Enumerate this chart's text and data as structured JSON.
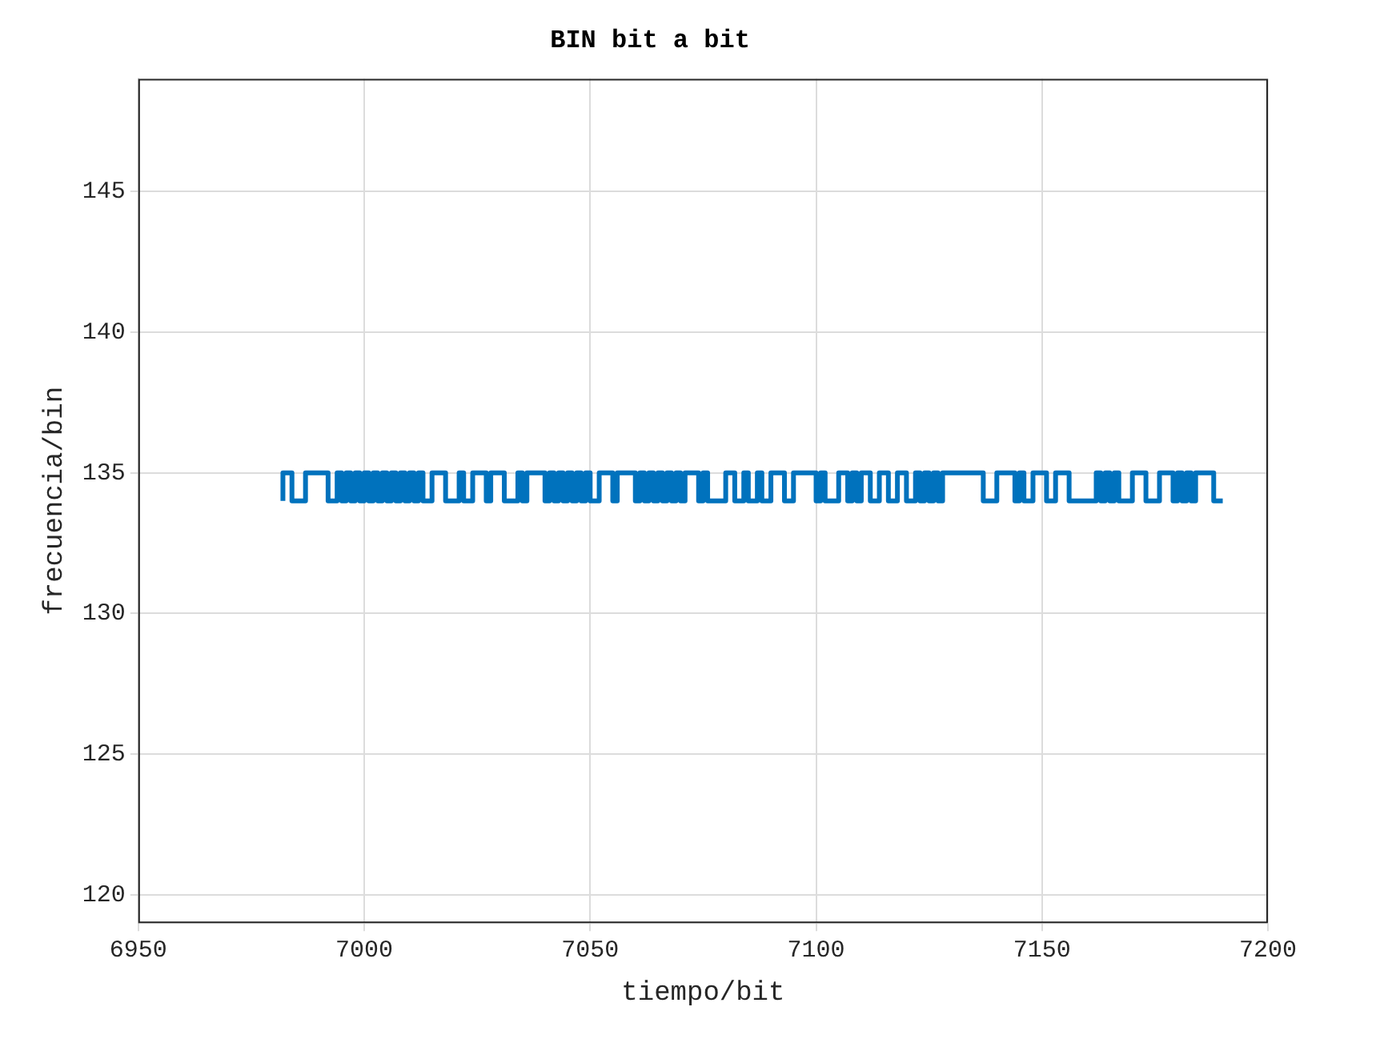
{
  "chart_data": {
    "type": "step",
    "title": "BIN bit a bit",
    "xlabel": "tiempo/bit",
    "ylabel": "frecuencia/bin",
    "x": [
      6982,
      6984,
      6987,
      6992,
      6994,
      6995,
      6996,
      6997,
      6998,
      6999,
      7000,
      7001,
      7002,
      7003,
      7004,
      7005,
      7006,
      7007,
      7008,
      7009,
      7010,
      7011,
      7012,
      7013,
      7015,
      7018,
      7021,
      7022,
      7024,
      7027,
      7028,
      7031,
      7034,
      7035,
      7036,
      7040,
      7041,
      7042,
      7043,
      7044,
      7045,
      7046,
      7047,
      7048,
      7049,
      7050,
      7052,
      7055,
      7056,
      7060,
      7061,
      7062,
      7063,
      7064,
      7065,
      7066,
      7067,
      7068,
      7069,
      7070,
      7071,
      7074,
      7075,
      7076,
      7080,
      7082,
      7084,
      7085,
      7087,
      7088,
      7090,
      7093,
      7095,
      7100,
      7101,
      7102,
      7105,
      7107,
      7108,
      7109,
      7110,
      7112,
      7114,
      7116,
      7118,
      7120,
      7122,
      7123,
      7124,
      7125,
      7126,
      7127,
      7128,
      7137,
      7140,
      7144,
      7145,
      7146,
      7148,
      7151,
      7153,
      7156,
      7162,
      7163,
      7164,
      7165,
      7166,
      7167,
      7170,
      7173,
      7176,
      7179,
      7180,
      7181,
      7182,
      7183,
      7184,
      7188,
      7190
    ],
    "series": [
      {
        "color": "#0072bd",
        "values": [
          134,
          135,
          134,
          135,
          134,
          135,
          134,
          135,
          134,
          135,
          134,
          135,
          134,
          135,
          134,
          135,
          134,
          135,
          134,
          135,
          134,
          135,
          134,
          135,
          134,
          135,
          134,
          135,
          134,
          135,
          134,
          135,
          134,
          135,
          134,
          135,
          134,
          135,
          134,
          135,
          134,
          135,
          134,
          135,
          134,
          135,
          134,
          135,
          134,
          135,
          134,
          135,
          134,
          135,
          134,
          135,
          134,
          135,
          134,
          135,
          134,
          135,
          134,
          135,
          134,
          135,
          134,
          135,
          134,
          135,
          134,
          135,
          134,
          135,
          134,
          135,
          134,
          135,
          134,
          135,
          134,
          135,
          134,
          135,
          134,
          135,
          134,
          135,
          134,
          135,
          134,
          135,
          134,
          135,
          134,
          135,
          134,
          135,
          134,
          135,
          134,
          135,
          134,
          135,
          134,
          135,
          134,
          135,
          134,
          135,
          134,
          135,
          134,
          135,
          134,
          135,
          134,
          135,
          134
        ]
      }
    ],
    "xlim": [
      6950,
      7200
    ],
    "xticks": [
      6950,
      7000,
      7050,
      7100,
      7150,
      7200
    ],
    "ylim": [
      119,
      149
    ],
    "yticks": [
      120,
      125,
      130,
      135,
      140,
      145
    ],
    "grid": true,
    "legend": false
  }
}
